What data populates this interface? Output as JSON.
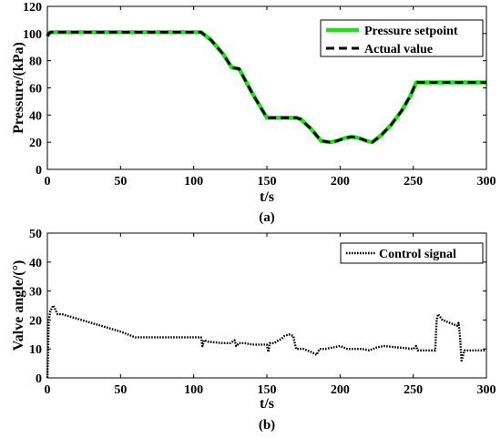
{
  "chart_data": [
    {
      "type": "line",
      "caption": "(a)",
      "xlabel": "t/s",
      "ylabel": "Pressure/(kPa)",
      "xlim": [
        0,
        300
      ],
      "ylim": [
        0,
        120
      ],
      "xticks": [
        0,
        50,
        100,
        150,
        200,
        250,
        300
      ],
      "yticks": [
        0,
        20,
        40,
        60,
        80,
        100,
        120
      ],
      "grid": false,
      "legend_position": "top-right",
      "series": [
        {
          "name": "Pressure setpoint",
          "color": "#22dd22",
          "style": "solid",
          "x": [
            0,
            1,
            2,
            3,
            105,
            112,
            120,
            126,
            131,
            140,
            150,
            160,
            170,
            173,
            180,
            187,
            193,
            198,
            203,
            208,
            213,
            218,
            222,
            228,
            235,
            242,
            248,
            252,
            300
          ],
          "y": [
            98,
            100,
            101,
            101,
            101,
            95,
            85,
            75,
            74,
            56,
            38,
            38,
            38,
            37,
            30,
            21,
            20,
            21,
            23,
            24,
            23,
            21,
            20,
            25,
            33,
            43,
            54,
            64,
            64
          ]
        },
        {
          "name": "Actual value",
          "color": "#000000",
          "style": "dashed",
          "x": [
            0,
            1,
            2,
            3,
            105,
            112,
            120,
            126,
            131,
            140,
            150,
            160,
            170,
            173,
            180,
            187,
            193,
            198,
            203,
            208,
            213,
            218,
            222,
            228,
            235,
            242,
            248,
            252,
            300
          ],
          "y": [
            98,
            100,
            101,
            101,
            101,
            95,
            85,
            75,
            74,
            56,
            38,
            38,
            38,
            37,
            30,
            21,
            20,
            21,
            23,
            24,
            23,
            21,
            20,
            25,
            33,
            43,
            54,
            64,
            64
          ]
        }
      ]
    },
    {
      "type": "line",
      "caption": "(b)",
      "xlabel": "t/s",
      "ylabel": "Valve angle/(°)",
      "xlim": [
        0,
        300
      ],
      "ylim": [
        0,
        50
      ],
      "xticks": [
        0,
        50,
        100,
        150,
        200,
        250,
        300
      ],
      "yticks": [
        0,
        10,
        20,
        30,
        40,
        50
      ],
      "grid": false,
      "legend_position": "top-right",
      "series": [
        {
          "name": "Control signal",
          "color": "#000000",
          "style": "dotted",
          "x": [
            0,
            1,
            2,
            3,
            4,
            5,
            7,
            10,
            20,
            30,
            40,
            50,
            55,
            60,
            70,
            80,
            90,
            100,
            105,
            106,
            107,
            110,
            120,
            125,
            128,
            129,
            131,
            135,
            140,
            145,
            150,
            151,
            152,
            155,
            158,
            160,
            162,
            165,
            168,
            169,
            170,
            175,
            180,
            184,
            185,
            186,
            190,
            195,
            200,
            205,
            210,
            215,
            220,
            225,
            230,
            240,
            250,
            252,
            253,
            254,
            260,
            264,
            265,
            266,
            267,
            270,
            275,
            280,
            281,
            282,
            283,
            285,
            290,
            295,
            300
          ],
          "y": [
            0,
            20,
            23,
            24,
            25,
            24,
            22,
            22,
            20.5,
            19,
            17.5,
            16,
            15,
            14,
            14,
            14,
            14,
            14,
            14,
            11,
            13,
            12.5,
            12,
            12,
            13,
            11,
            12,
            12,
            11.5,
            11.5,
            11.5,
            9,
            12,
            12,
            13,
            13.5,
            14.5,
            15,
            14.5,
            12,
            10,
            10,
            9,
            8,
            9,
            10,
            10,
            10.5,
            11,
            10,
            10,
            10,
            9.5,
            10.5,
            11,
            10.5,
            10,
            11,
            9.5,
            9.5,
            9.5,
            9.5,
            9.5,
            20,
            22,
            20,
            19,
            18,
            19,
            14,
            6,
            9.5,
            9.5,
            9.5,
            9.5
          ]
        }
      ]
    }
  ]
}
